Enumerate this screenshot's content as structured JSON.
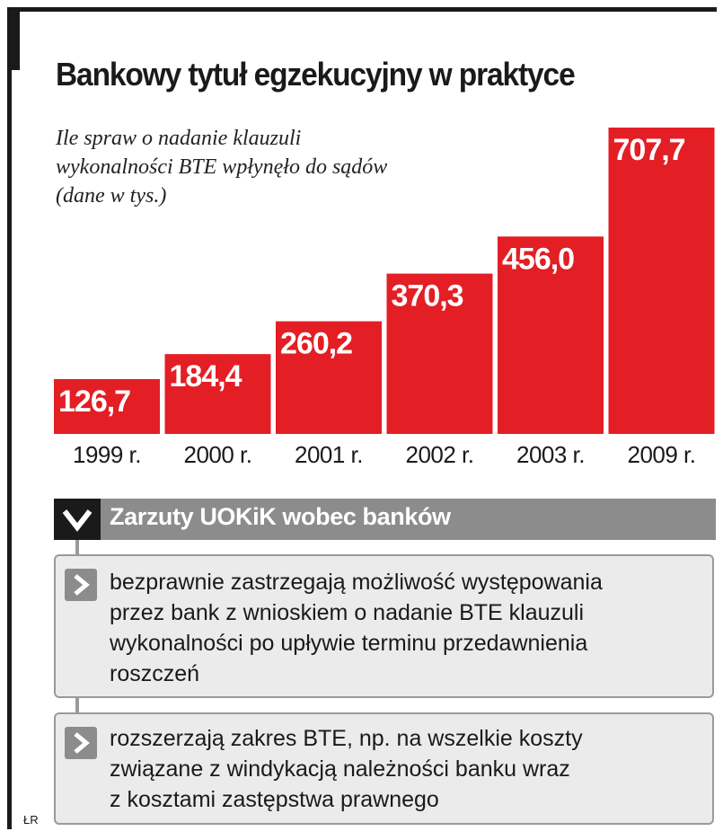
{
  "title": "Bankowy tytuł egzekucyjny w praktyce",
  "subtitle_lines": [
    "Ile spraw o nadanie klauzuli",
    "wykonalności BTE wpłynęło do sądów",
    "(dane w tys.)"
  ],
  "colors": {
    "bar": "#e31e25",
    "frame": "#1a1a1a",
    "header": "#8c8c8c",
    "box": "#ebebeb"
  },
  "chart_data": {
    "type": "bar",
    "categories": [
      "1999 r.",
      "2000 r.",
      "2001 r.",
      "2002 r.",
      "2003 r.",
      "2009 r."
    ],
    "values": [
      126.7,
      184.4,
      260.2,
      370.3,
      456.0,
      707.7
    ],
    "value_labels": [
      "126,7",
      "184,4",
      "260,2",
      "370,3",
      "456,0",
      "707,7"
    ],
    "title": "Bankowy tytuł egzekucyjny w praktyce",
    "xlabel": "",
    "ylabel": "",
    "ylim": [
      0,
      707.7
    ],
    "grid": false,
    "legend": "none"
  },
  "section": {
    "header": "Zarzuty UOKiK wobec banków",
    "header_icon": "chevron-down-icon",
    "bullet_icon": "chevron-right-icon",
    "items": [
      {
        "lines": [
          "bezprawnie zastrzegają możliwość występowania",
          "przez bank z wnioskiem o nadanie BTE klauzuli",
          "wykonalności po upływie terminu przedawnienia",
          "roszczeń"
        ]
      },
      {
        "lines": [
          "rozszerzają zakres BTE, np. na wszelkie koszty",
          "związane z windykacją należności banku wraz",
          "z kosztami zastępstwa prawnego"
        ]
      }
    ]
  },
  "credit": "ŁR"
}
